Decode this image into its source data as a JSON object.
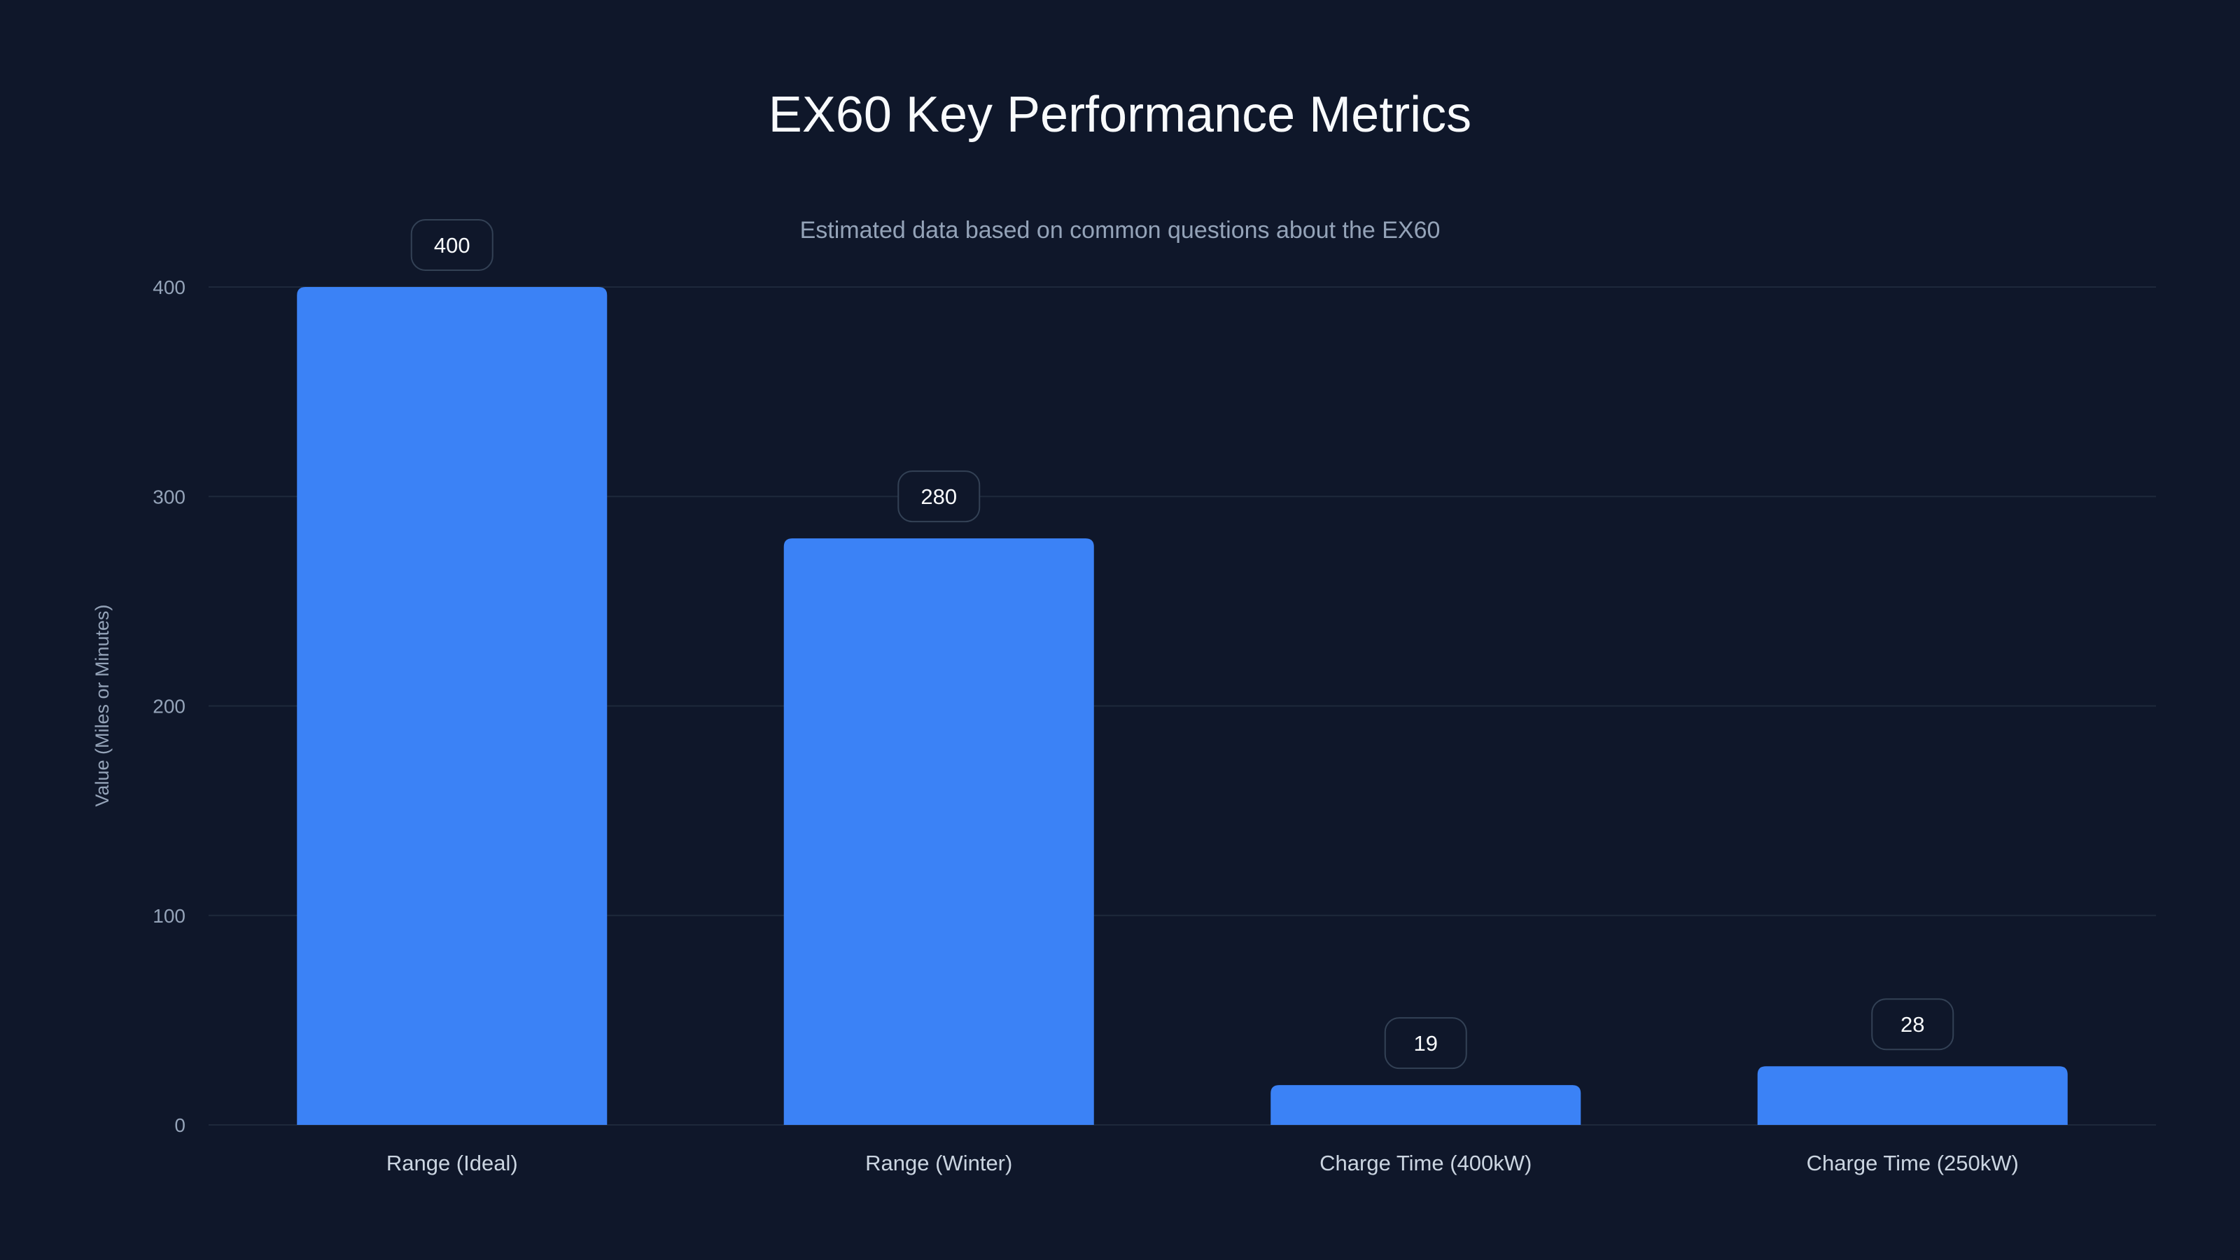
{
  "colors": {
    "background": "#0f172a",
    "bar": "#3b82f6",
    "grid": "#1e293b",
    "label_border": "#334155"
  },
  "chart_data": {
    "type": "bar",
    "title": "EX60 Key Performance Metrics",
    "subtitle": "Estimated data based on common questions about the EX60",
    "categories": [
      "Range (Ideal)",
      "Range (Winter)",
      "Charge Time (400kW)",
      "Charge Time (250kW)"
    ],
    "values": [
      400,
      280,
      19,
      28
    ],
    "value_labels": [
      "400",
      "280",
      "19",
      "28"
    ],
    "xlabel": "",
    "ylabel": "Value (Miles or Minutes)",
    "ylim": [
      0,
      400
    ],
    "yticks": [
      0,
      100,
      200,
      300,
      400
    ],
    "ytick_labels": [
      "0",
      "100",
      "200",
      "300",
      "400"
    ],
    "grid": true,
    "legend": "none"
  }
}
